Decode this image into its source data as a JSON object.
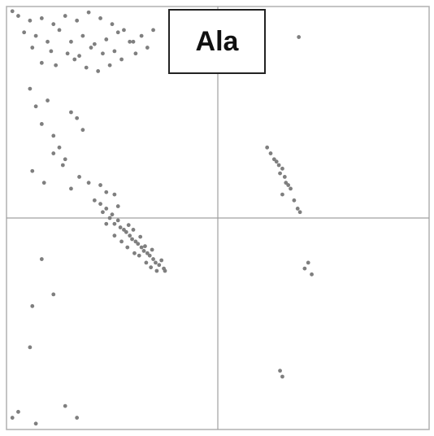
{
  "chart_data": {
    "type": "scatter",
    "title": "Ala",
    "color": "#7f7f7f",
    "xlim": [
      -180,
      180
    ],
    "ylim": [
      -180,
      180
    ],
    "xticks": [
      0
    ],
    "yticks": [
      0
    ],
    "grid": true,
    "x": [
      -170,
      -160,
      -150,
      -140,
      -130,
      -120,
      -110,
      -100,
      -90,
      -80,
      -165,
      -155,
      -145,
      -135,
      -125,
      -115,
      -105,
      -95,
      -85,
      -75,
      -175,
      -158,
      -142,
      -128,
      -118,
      -108,
      -98,
      -88,
      -72,
      -65,
      -150,
      -138,
      -122,
      -112,
      -102,
      -92,
      -82,
      -70,
      -60,
      -55,
      -160,
      -155,
      -150,
      -145,
      -140,
      -135,
      -130,
      -125,
      -120,
      -115,
      -158,
      -148,
      -140,
      -132,
      -125,
      -118,
      -110,
      -100,
      -95,
      -88,
      -105,
      -100,
      -98,
      -95,
      -92,
      -90,
      -88,
      -85,
      -83,
      -80,
      -78,
      -76,
      -75,
      -73,
      -72,
      -70,
      -68,
      -66,
      -65,
      -63,
      -62,
      -60,
      -58,
      -56,
      -55,
      -53,
      -50,
      -48,
      -46,
      -45,
      -95,
      -88,
      -82,
      -77,
      -71,
      -67,
      -61,
      -57,
      -52,
      -85,
      42,
      45,
      48,
      50,
      52,
      55,
      53,
      57,
      58,
      60,
      55,
      62,
      65,
      68,
      70,
      69,
      74,
      77,
      80,
      53,
      55,
      -150,
      -140,
      -158,
      -160,
      -170,
      -155,
      -130,
      -120,
      -175
    ],
    "values": [
      172,
      168,
      170,
      165,
      172,
      168,
      175,
      170,
      165,
      160,
      158,
      155,
      150,
      160,
      150,
      155,
      148,
      152,
      158,
      150,
      176,
      145,
      142,
      140,
      138,
      145,
      140,
      142,
      150,
      155,
      132,
      130,
      135,
      128,
      125,
      130,
      135,
      140,
      145,
      160,
      110,
      95,
      80,
      100,
      70,
      60,
      50,
      90,
      85,
      75,
      40,
      30,
      55,
      45,
      25,
      35,
      30,
      28,
      22,
      20,
      15,
      12,
      5,
      8,
      0,
      3,
      -5,
      -2,
      -8,
      -10,
      -12,
      -6,
      -15,
      -18,
      -10,
      -20,
      -22,
      -16,
      -25,
      -28,
      -24,
      -30,
      -32,
      -27,
      -35,
      -38,
      -40,
      -36,
      -43,
      -45,
      -5,
      -15,
      -20,
      -25,
      -30,
      -32,
      -38,
      -42,
      -45,
      10,
      60,
      55,
      50,
      48,
      45,
      42,
      38,
      35,
      30,
      28,
      20,
      25,
      15,
      8,
      5,
      154,
      -43,
      -38,
      -48,
      -130,
      -135,
      -35,
      -65,
      -75,
      -110,
      -165,
      -175,
      -160,
      -170,
      -170
    ]
  }
}
